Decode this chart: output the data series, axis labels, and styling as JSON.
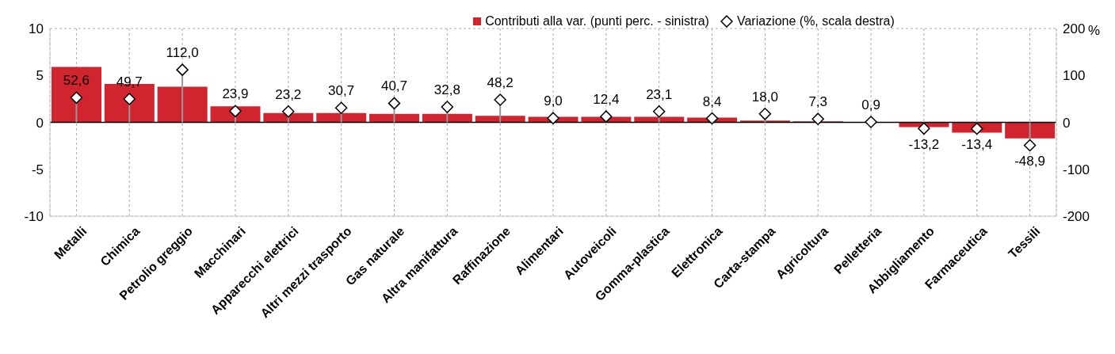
{
  "chart_data": {
    "type": "bar",
    "categories": [
      "Metalli",
      "Chimica",
      "Petrolio greggio",
      "Macchinari",
      "Apparecchi elettrici",
      "Altri mezzi trasporto",
      "Gas naturale",
      "Altra manifattura",
      "Raffinazione",
      "Alimentari",
      "Autoveicoli",
      "Gomma-plastica",
      "Elettronica",
      "Carta-stampa",
      "Agricoltura",
      "Pelletteria",
      "Abbigliamento",
      "Farmaceutica",
      "Tessili"
    ],
    "series": [
      {
        "name": "Contributi alla var. (punti perc. - sinistra)",
        "color": "#d0252f",
        "values": [
          5.9,
          4.1,
          3.8,
          1.7,
          1.0,
          1.0,
          0.9,
          0.9,
          0.7,
          0.6,
          0.6,
          0.6,
          0.5,
          0.2,
          0.1,
          0.0,
          -0.5,
          -1.1,
          -1.7
        ]
      },
      {
        "name": "Variazione (%, scala destra)",
        "type": "lollipop",
        "axis": "y2",
        "color": "#000000",
        "marker": "diamond",
        "values": [
          52.6,
          49.7,
          112.0,
          23.9,
          23.2,
          30.7,
          40.7,
          32.8,
          48.2,
          9.0,
          12.4,
          23.1,
          8.4,
          18.0,
          7.3,
          0.9,
          -13.2,
          -13.4,
          -48.9
        ],
        "value_labels": [
          "52,6",
          "49,7",
          "112,0",
          "23,9",
          "23,2",
          "30,7",
          "40,7",
          "32,8",
          "48,2",
          "9,0",
          "12,4",
          "23,1",
          "8,4",
          "18,0",
          "7,3",
          "0,9",
          "-13,2",
          "-13,4",
          "-48,9"
        ]
      }
    ],
    "ylim": [
      -10,
      10
    ],
    "yticks": [
      -10,
      -5,
      0,
      5,
      10
    ],
    "y2lim": [
      -200,
      200
    ],
    "y2ticks": [
      -200,
      -100,
      0,
      100,
      200
    ],
    "y2label": "%",
    "grid": true,
    "legend": "top"
  }
}
